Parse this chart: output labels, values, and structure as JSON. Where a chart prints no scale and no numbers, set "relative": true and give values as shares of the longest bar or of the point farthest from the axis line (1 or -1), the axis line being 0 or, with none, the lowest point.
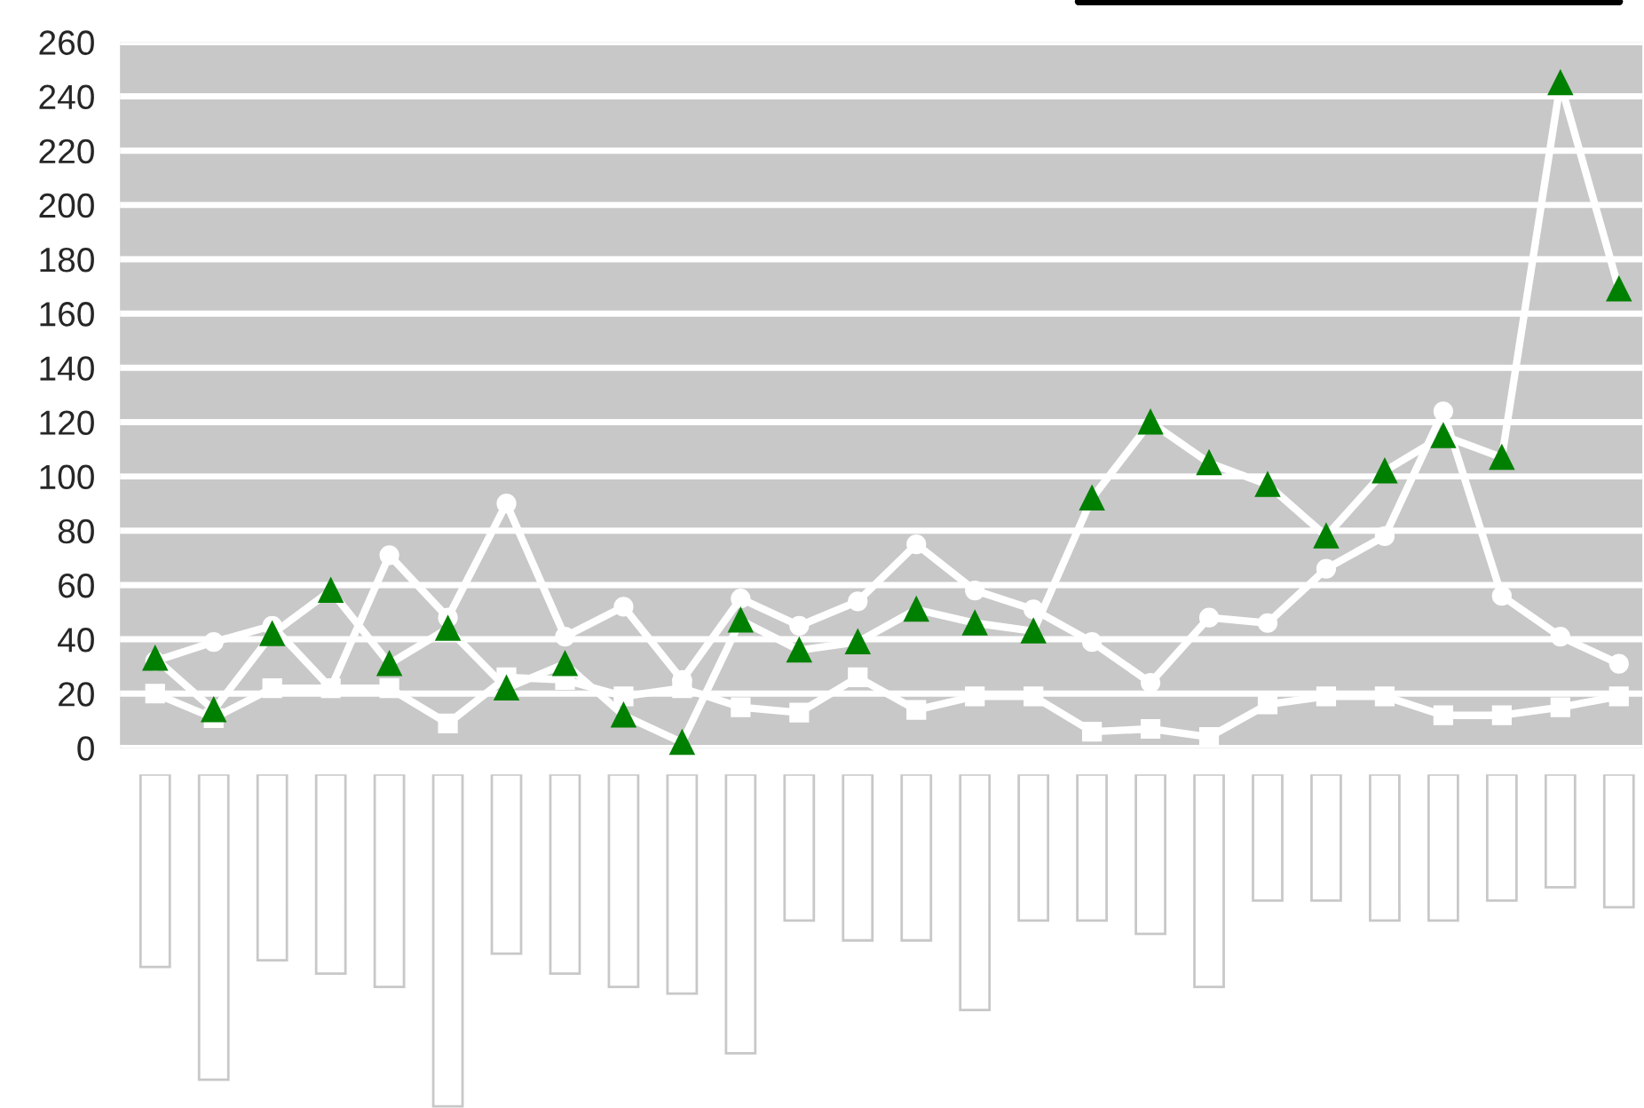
{
  "chart_data": [
    {
      "type": "line",
      "categories": [
        null,
        null,
        null,
        null,
        null,
        null,
        null,
        null,
        null,
        null,
        null,
        null,
        null,
        null,
        null,
        null,
        null,
        null,
        null,
        null,
        null,
        null,
        null,
        null,
        null,
        null
      ],
      "series": [
        {
          "color": "#ffffff",
          "marker": "square",
          "values": [
            20,
            11,
            22,
            22,
            22,
            9,
            26,
            25,
            19,
            22,
            15,
            13,
            26,
            14,
            19,
            19,
            6,
            7,
            4,
            16,
            19,
            19,
            12,
            12,
            15,
            19
          ]
        },
        {
          "color": "#ffffff",
          "marker": "circle",
          "values": [
            32,
            39,
            45,
            22,
            71,
            48,
            90,
            41,
            52,
            25,
            55,
            45,
            54,
            75,
            58,
            51,
            39,
            24,
            48,
            46,
            66,
            78,
            124,
            56,
            41,
            31
          ]
        },
        {
          "color": "#008000",
          "marker": "triangle",
          "values": [
            33,
            14,
            42,
            58,
            31,
            44,
            22,
            31,
            12,
            2,
            47,
            36,
            39,
            51,
            46,
            43,
            92,
            120,
            105,
            97,
            78,
            102,
            115,
            107,
            245,
            169
          ]
        }
      ],
      "ylim": [
        0,
        260
      ],
      "yticks": [
        0,
        20,
        40,
        60,
        80,
        100,
        120,
        140,
        160,
        180,
        200,
        220,
        240,
        260
      ],
      "grid": "y",
      "tick_labels": "y"
    },
    {
      "type": "bar",
      "relative": true,
      "categories": [
        null,
        null,
        null,
        null,
        null,
        null,
        null,
        null,
        null,
        null,
        null,
        null,
        null,
        null,
        null,
        null,
        null,
        null,
        null,
        null,
        null,
        null,
        null,
        null,
        null,
        null
      ],
      "values": [
        -0.58,
        -0.92,
        -0.56,
        -0.6,
        -0.64,
        -1,
        -0.54,
        -0.6,
        -0.64,
        -0.66,
        -0.84,
        -0.44,
        -0.5,
        -0.5,
        -0.71,
        -0.44,
        -0.44,
        -0.48,
        -0.64,
        -0.38,
        -0.38,
        -0.44,
        -0.44,
        -0.38,
        -0.34,
        -0.4
      ],
      "color": "#ffffff",
      "tick_labels": false
    }
  ]
}
